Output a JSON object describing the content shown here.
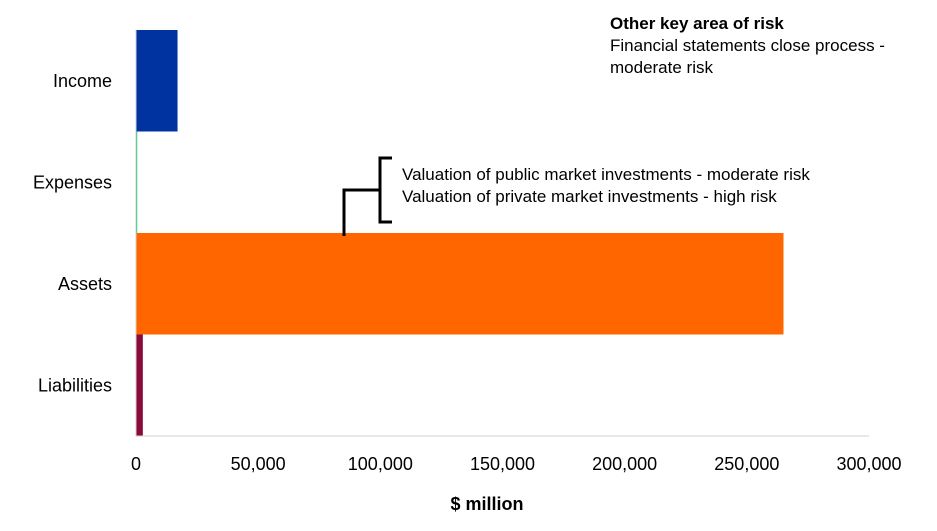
{
  "chart_data": {
    "type": "bar",
    "orientation": "horizontal",
    "categories": [
      "Income",
      "Expenses",
      "Assets",
      "Liabilities"
    ],
    "values": [
      17000,
      500,
      265000,
      2800
    ],
    "colors": [
      "#0033A0",
      "#00C46A",
      "#FF6600",
      "#8A0B3A"
    ],
    "xlabel": "$ million",
    "xlim": [
      0,
      300000
    ],
    "xticks": [
      0,
      50000,
      100000,
      150000,
      200000,
      250000,
      300000
    ],
    "xtick_labels": [
      "0",
      "50,000",
      "100,000",
      "150,000",
      "200,000",
      "250,000",
      "300,000"
    ],
    "grid": false,
    "legend": "none"
  },
  "annotations": {
    "other_risk": {
      "title": "Other key area of risk",
      "line1": "Financial statements close process -",
      "line2": "moderate risk"
    },
    "asset_risk": {
      "line1": "Valuation of public market investments - moderate risk",
      "line2": "Valuation of private market investments - high risk"
    }
  }
}
